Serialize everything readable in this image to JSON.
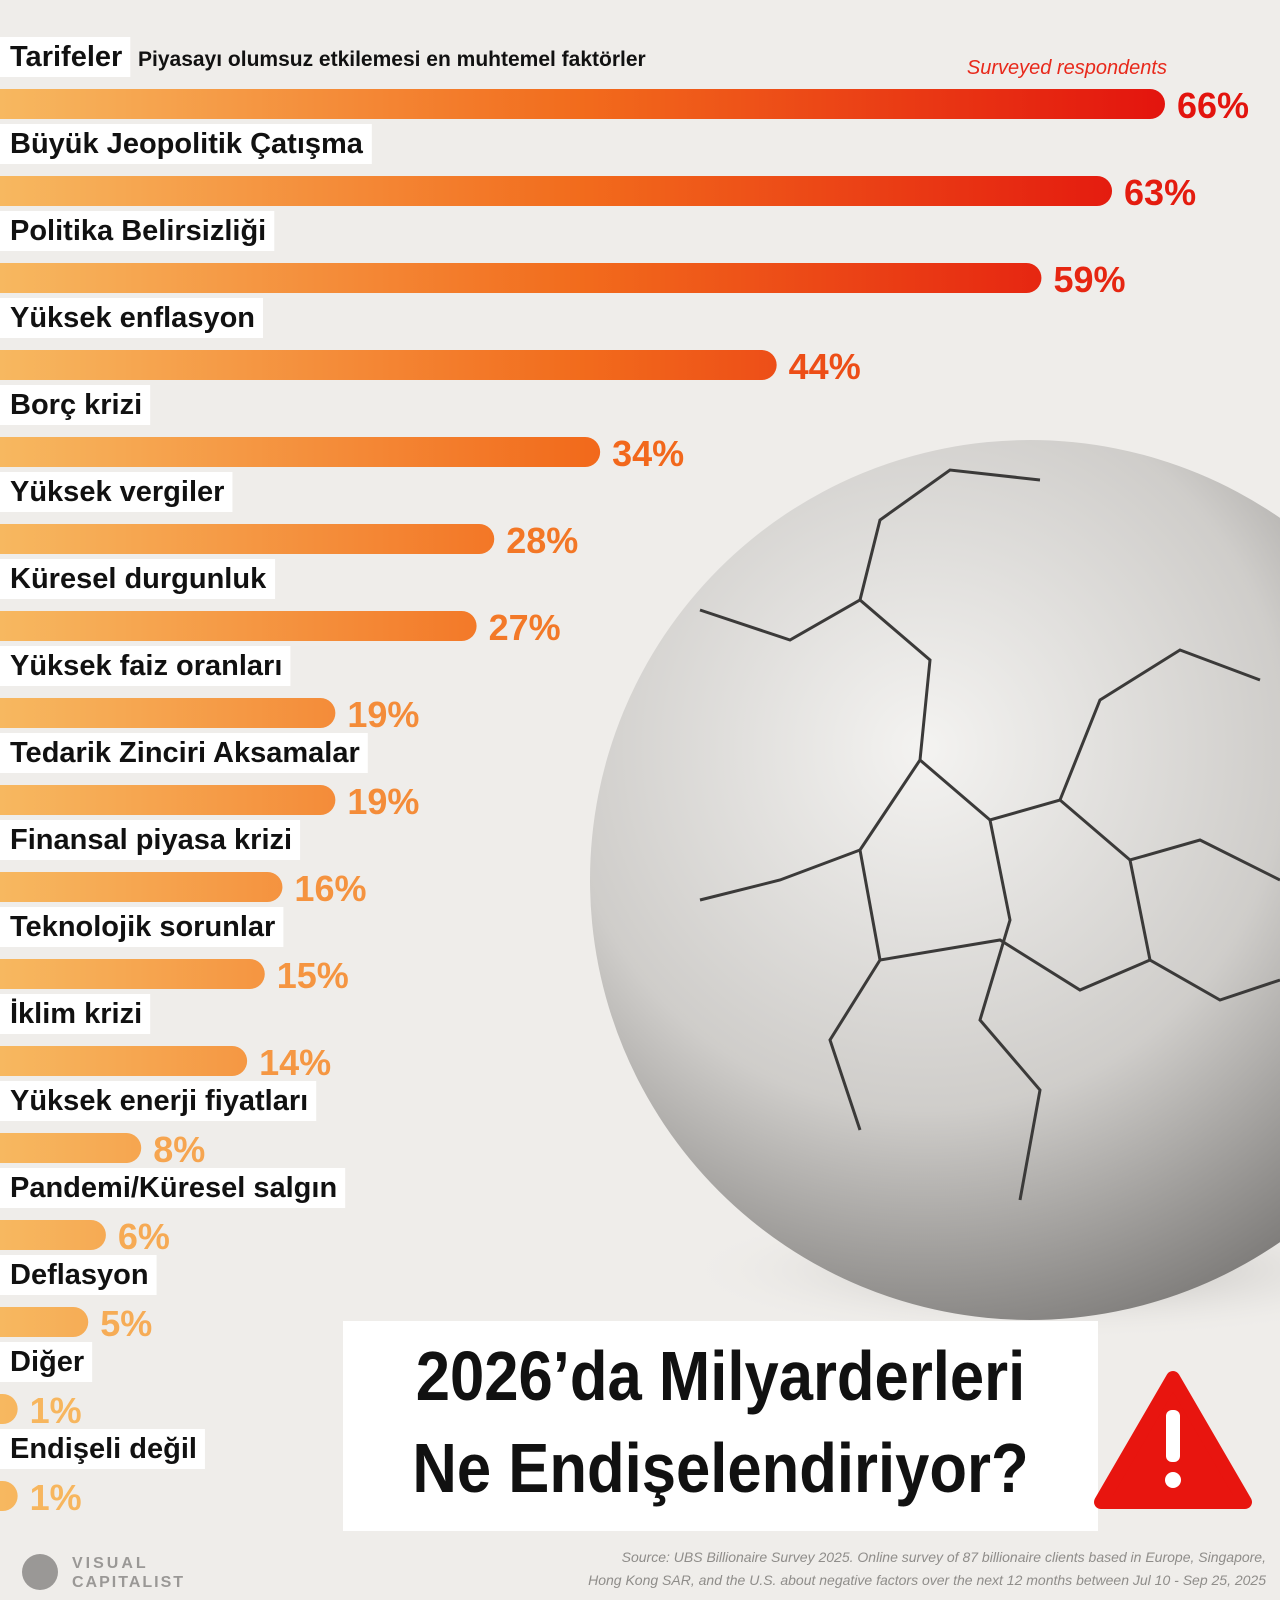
{
  "chart_data": {
    "type": "bar",
    "title": "2026’da Milyarderleri Ne Endişelendiriyor?",
    "subtitle": "Piyasayı olumsuz etkilemesi en muhtemel faktörler",
    "series_label": "Surveyed respondents",
    "categories": [
      "Tarifeler",
      "Büyük Jeopolitik Çatışma",
      "Politika Belirsizliği",
      "Yüksek enflasyon",
      "Borç krizi",
      "Yüksek vergiler",
      "Küresel durgunluk",
      "Yüksek faiz oranları",
      "Tedarik Zinciri Aksamalar",
      "Finansal piyasa krizi",
      "Teknolojik sorunlar",
      "İklim krizi",
      "Yüksek enerji fiyatları",
      "Pandemi/Küresel salgın",
      "Deflasyon",
      "Diğer",
      "Endişeli değil"
    ],
    "values": [
      66,
      63,
      59,
      44,
      34,
      28,
      27,
      19,
      19,
      16,
      15,
      14,
      8,
      6,
      5,
      1,
      1
    ],
    "value_labels": [
      "66%",
      "63%",
      "59%",
      "44%",
      "34%",
      "28%",
      "27%",
      "19%",
      "19%",
      "16%",
      "15%",
      "14%",
      "8%",
      "6%",
      "5%",
      "1%",
      "1%"
    ],
    "colors": [
      "#f7b860",
      "#f26b1c",
      "#e3140e"
    ],
    "source": [
      "Source: UBS Billionaire Survey 2025. Online survey of 87 billionaire clients based in Europe, Singapore,",
      "Hong Kong SAR, and the U.S. about negative factors over the next 12 months between Jul 10 - Sep 25, 2025"
    ],
    "brand": [
      "VISUAL",
      "CAPITALIST"
    ]
  }
}
